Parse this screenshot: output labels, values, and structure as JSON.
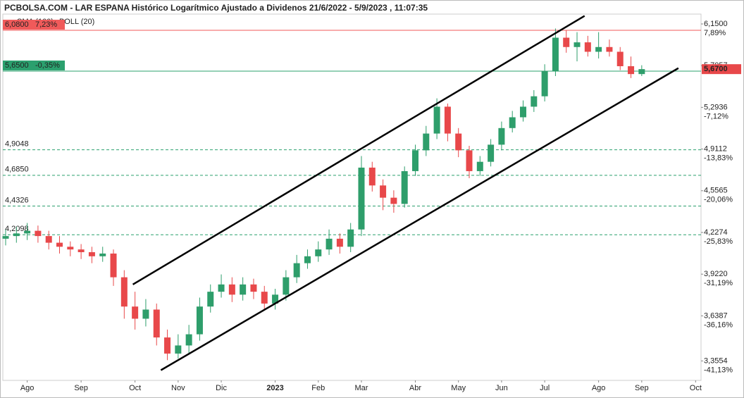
{
  "chart_data": {
    "type": "candlestick",
    "title": "PCBOLSA.COM - LAR ESPANA Histórico Logarítmico Ajustado a Dividenos 21/6/2022 - 5/9/2023 , 11:07:35",
    "indicators": [
      "SMA (100)",
      "BOLL (20)"
    ],
    "log_scale": true,
    "up_color": "#2e9e6b",
    "down_color": "#e8484a",
    "categories": [
      null,
      null,
      "Ago",
      null,
      null,
      null,
      null,
      "Sep",
      null,
      null,
      null,
      null,
      "Oct",
      null,
      null,
      null,
      "Nov",
      null,
      null,
      null,
      "Dic",
      null,
      null,
      null,
      null,
      "2023",
      null,
      null,
      null,
      "Feb",
      null,
      null,
      null,
      "Mar",
      null,
      null,
      null,
      null,
      "Abr",
      null,
      null,
      null,
      "May",
      null,
      null,
      null,
      "Jun",
      null,
      null,
      null,
      "Jul",
      null,
      null,
      null,
      null,
      "Ago",
      null,
      null,
      null,
      "Sep",
      null,
      null,
      null,
      null,
      "Oct"
    ],
    "open": [
      4.18,
      4.2,
      4.22,
      4.24,
      4.2,
      4.15,
      4.12,
      4.1,
      4.08,
      4.05,
      4.07,
      3.9,
      3.7,
      3.62,
      3.68,
      3.5,
      3.4,
      3.45,
      3.52,
      3.7,
      3.8,
      3.85,
      3.78,
      3.85,
      3.8,
      3.72,
      3.78,
      3.9,
      4.0,
      4.05,
      4.1,
      4.18,
      4.12,
      4.25,
      4.75,
      4.6,
      4.5,
      4.45,
      4.72,
      4.9,
      5.05,
      5.3,
      5.05,
      4.9,
      4.72,
      4.8,
      4.95,
      5.1,
      5.2,
      5.3,
      5.4,
      5.65,
      6.0,
      5.9,
      5.95,
      5.85,
      5.9,
      5.85,
      5.7,
      5.62,
      null,
      null,
      null,
      null,
      null
    ],
    "high": [
      4.25,
      4.27,
      4.3,
      4.28,
      4.24,
      4.2,
      4.16,
      4.14,
      4.12,
      4.12,
      4.1,
      3.95,
      3.8,
      3.75,
      3.72,
      3.55,
      3.52,
      3.58,
      3.76,
      3.85,
      3.92,
      3.9,
      3.9,
      3.89,
      3.84,
      3.82,
      3.95,
      4.06,
      4.1,
      4.16,
      4.25,
      4.22,
      4.3,
      4.85,
      4.8,
      4.65,
      4.56,
      4.76,
      4.95,
      5.12,
      5.38,
      5.33,
      5.1,
      4.94,
      4.85,
      5.0,
      5.16,
      5.26,
      5.36,
      5.46,
      5.72,
      6.1,
      6.08,
      6.06,
      6.02,
      6.06,
      5.98,
      5.9,
      5.8,
      5.71,
      null,
      null,
      null,
      null,
      null
    ],
    "low": [
      4.13,
      4.15,
      4.17,
      4.15,
      4.1,
      4.07,
      4.05,
      4.03,
      4.0,
      4.01,
      3.84,
      3.62,
      3.55,
      3.57,
      3.45,
      3.36,
      3.37,
      3.4,
      3.48,
      3.66,
      3.76,
      3.73,
      3.74,
      3.75,
      3.68,
      3.68,
      3.74,
      3.86,
      3.96,
      4.01,
      4.06,
      4.07,
      4.08,
      4.2,
      4.55,
      4.4,
      4.38,
      4.42,
      4.68,
      4.85,
      5.0,
      4.98,
      4.84,
      4.66,
      4.68,
      4.76,
      4.9,
      5.06,
      5.16,
      5.25,
      5.35,
      5.6,
      5.84,
      5.75,
      5.8,
      5.78,
      5.8,
      5.66,
      5.58,
      5.6,
      null,
      null,
      null,
      null,
      null
    ],
    "close": [
      4.2,
      4.22,
      4.24,
      4.2,
      4.15,
      4.12,
      4.1,
      4.08,
      4.05,
      4.07,
      3.9,
      3.7,
      3.62,
      3.68,
      3.5,
      3.4,
      3.45,
      3.52,
      3.7,
      3.8,
      3.85,
      3.78,
      3.85,
      3.8,
      3.72,
      3.78,
      3.9,
      4.0,
      4.05,
      4.1,
      4.18,
      4.12,
      4.25,
      4.75,
      4.6,
      4.5,
      4.45,
      4.72,
      4.9,
      5.05,
      5.3,
      5.05,
      4.9,
      4.72,
      4.8,
      4.95,
      5.1,
      5.2,
      5.3,
      5.4,
      5.65,
      6.0,
      5.9,
      5.95,
      5.85,
      5.9,
      5.85,
      5.7,
      5.62,
      5.67,
      null,
      null,
      null,
      null,
      null
    ],
    "ylim": [
      3.24,
      6.26
    ],
    "yticks": [
      {
        "value": 6.15,
        "label": "6,1500"
      },
      {
        "value": 5.7057,
        "label": "5,7057"
      },
      {
        "value": 5.2936,
        "label": "5,2936"
      },
      {
        "value": 4.9112,
        "label": "4,9112"
      },
      {
        "value": 4.5565,
        "label": "4,5565"
      },
      {
        "value": 4.2274,
        "label": "4,2274"
      },
      {
        "value": 3.922,
        "label": "3,9220"
      },
      {
        "value": 3.6387,
        "label": "3,6387"
      },
      {
        "value": 3.3554,
        "label": "3,3554"
      }
    ],
    "ytick_changes": [
      {
        "value": 7.89,
        "label": "7,89%"
      },
      null,
      {
        "value": -7.12,
        "label": "-7,12%"
      },
      {
        "value": -13.83,
        "label": "-13,83%"
      },
      {
        "value": -20.06,
        "label": "-20,06%"
      },
      {
        "value": -25.83,
        "label": "-25,83%"
      },
      {
        "value": -31.19,
        "label": "-31,19%"
      },
      {
        "value": -36.16,
        "label": "-36,16%"
      },
      {
        "value": -41.13,
        "label": "-41,13%"
      }
    ],
    "levels": [
      {
        "value": 6.08,
        "label": "6,0800",
        "change": {
          "value": 7.23,
          "label": "7,23%"
        },
        "color": "#f05a5a",
        "style": "solid"
      },
      {
        "value": 5.65,
        "label": "5,6500",
        "change": {
          "value": -0.35,
          "label": "-0,35%"
        },
        "color": "#2ba06e",
        "style": "solid"
      },
      {
        "value": 4.9048,
        "label": "4,9048",
        "color": "#2ba06e",
        "style": "dashed"
      },
      {
        "value": 4.685,
        "label": "4,6850",
        "color": "#2ba06e",
        "style": "dashed"
      },
      {
        "value": 4.4326,
        "label": "4,4326",
        "color": "#2ba06e",
        "style": "dashed"
      },
      {
        "value": 4.2098,
        "label": "4,2098",
        "color": "#2ba06e",
        "style": "dashed"
      }
    ],
    "last_price": {
      "value": 5.67,
      "label": "5,6700"
    },
    "trendlines": [
      {
        "x": [
          11.8,
          53.7
        ],
        "y": [
          3.85,
          6.24
        ]
      },
      {
        "x": [
          14.4,
          62.4
        ],
        "y": [
          3.3,
          5.68
        ]
      }
    ]
  }
}
